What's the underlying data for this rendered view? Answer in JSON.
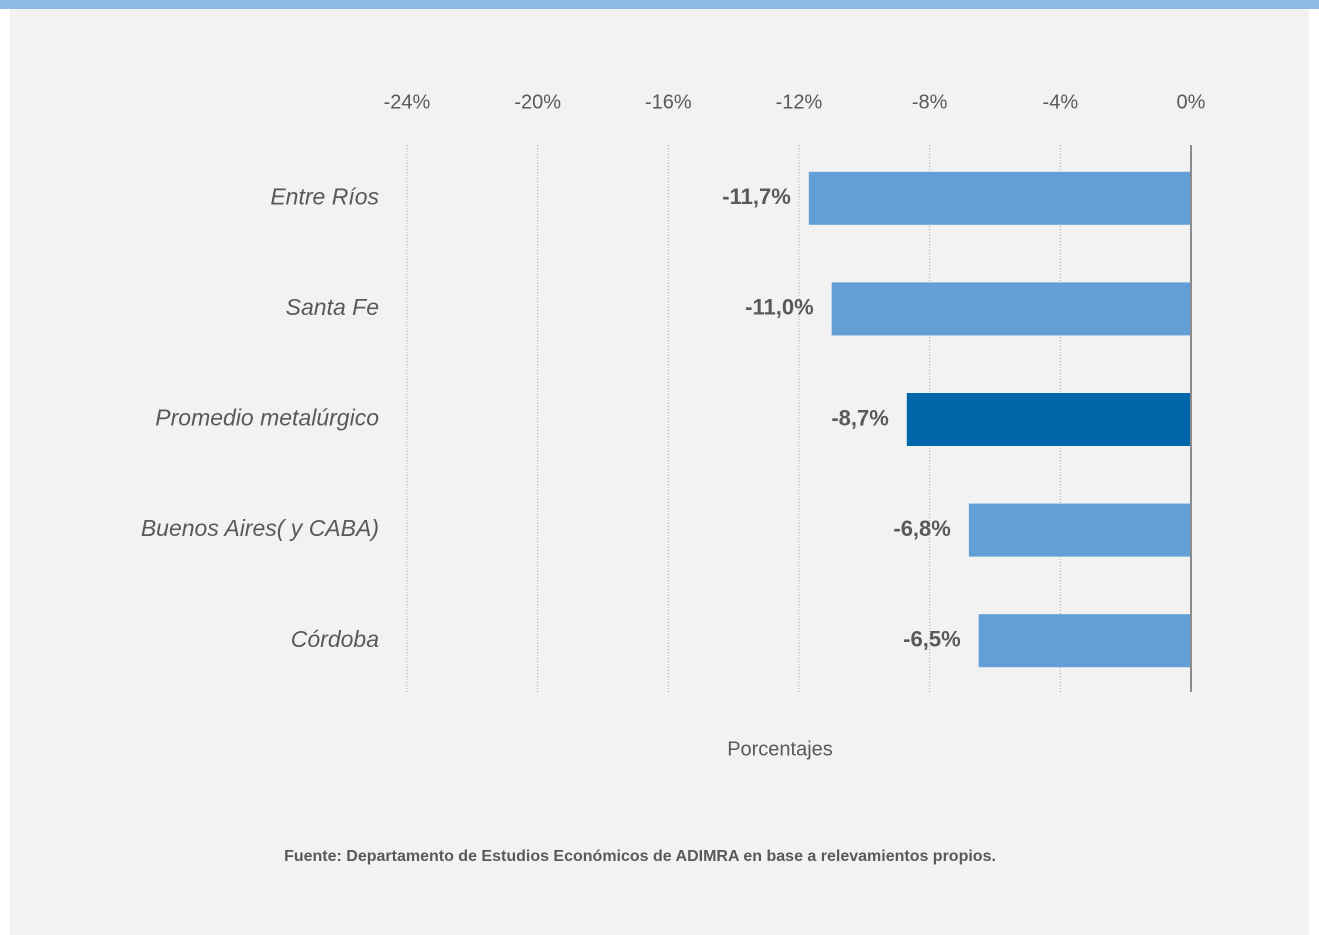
{
  "chart_data": {
    "type": "hbar",
    "categories": [
      "Entre Ríos",
      "Santa Fe",
      "Promedio metalúrgico",
      "Buenos Aires( y CABA)",
      "Córdoba"
    ],
    "values": [
      -11.7,
      -11.0,
      -8.7,
      -6.8,
      -6.5
    ],
    "value_labels": [
      "-11,7%",
      "-11,0%",
      "-8,7%",
      "-6,8%",
      "-6,5%"
    ],
    "colors": [
      "#629fd6",
      "#629fd6",
      "#0066aa",
      "#629fd6",
      "#629fd6"
    ],
    "xlim": [
      -24,
      0
    ],
    "xticks": [
      {
        "value": -24,
        "label": "-24%"
      },
      {
        "value": -20,
        "label": "-20%"
      },
      {
        "value": -16,
        "label": "-16%"
      },
      {
        "value": -12,
        "label": "-12%"
      },
      {
        "value": -8,
        "label": "-8%"
      },
      {
        "value": -4,
        "label": "-4%"
      },
      {
        "value": 0,
        "label": "0%"
      }
    ],
    "grid": true,
    "xlabel": "Porcentajes",
    "source": "Fuente: Departamento de Estudios Económicos de ADIMRA en base a relevamientos propios."
  }
}
